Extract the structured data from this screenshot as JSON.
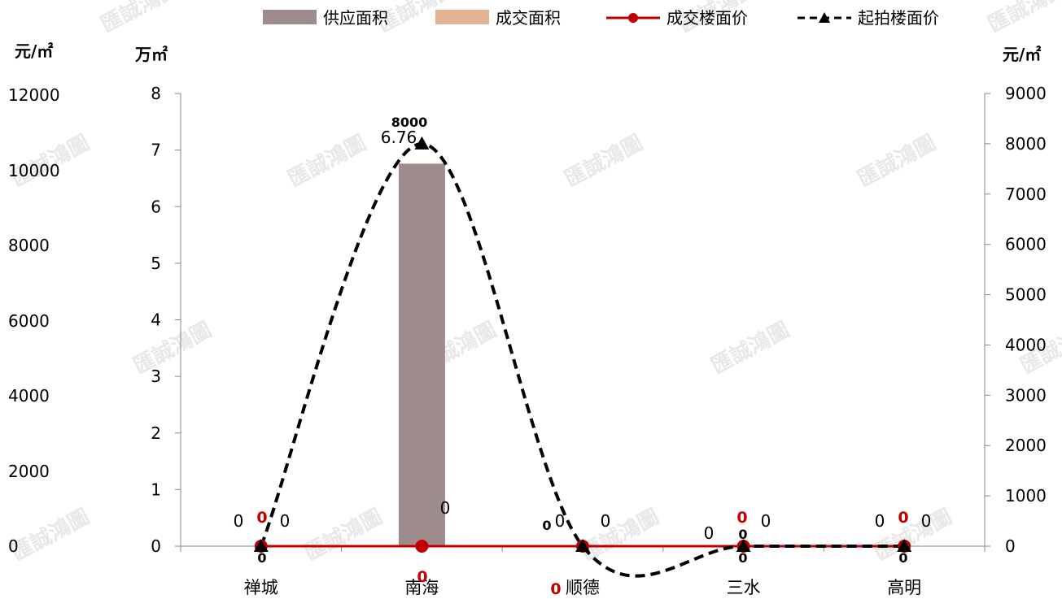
{
  "chart_data": {
    "type": "bar",
    "categories": [
      "禅城",
      "南海",
      "顺德",
      "三水",
      "高明"
    ],
    "series": [
      {
        "name": "供应面积",
        "kind": "bar",
        "axis": "primary",
        "color": "#9e8c8c",
        "values": [
          0,
          6.76,
          0,
          0,
          0
        ]
      },
      {
        "name": "成交面积",
        "kind": "bar",
        "axis": "primary",
        "color": "#e0b493",
        "values": [
          0,
          0,
          0,
          0,
          0
        ]
      },
      {
        "name": "成交楼面价",
        "kind": "line",
        "axis": "secondary",
        "color": "#c00000",
        "marker": "circle",
        "values": [
          0,
          0,
          0,
          0,
          0
        ]
      },
      {
        "name": "起拍楼面价",
        "kind": "line-dashed",
        "axis": "secondary",
        "color": "#000000",
        "marker": "triangle",
        "values": [
          0,
          8000,
          0,
          0,
          0
        ]
      }
    ],
    "axes": {
      "outer_left": {
        "unit": "元/㎡",
        "min": 0,
        "max": 12000,
        "ticks": [
          "0",
          "2000",
          "4000",
          "6000",
          "8000",
          "10000",
          "12000"
        ]
      },
      "left": {
        "unit": "万㎡",
        "min": 0,
        "max": 8,
        "ticks": [
          "0",
          "1",
          "2",
          "3",
          "4",
          "5",
          "6",
          "7",
          "8"
        ]
      },
      "right": {
        "unit": "元/㎡",
        "min": 0,
        "max": 9000,
        "ticks": [
          "0",
          "1000",
          "2000",
          "3000",
          "4000",
          "5000",
          "6000",
          "7000",
          "8000",
          "9000"
        ]
      }
    },
    "data_labels": {
      "supply": [
        "0",
        "6.76",
        "0",
        "0",
        "0"
      ],
      "deal_area": [
        "0",
        "0",
        "0",
        "0",
        "0"
      ],
      "deal_price": [
        "0",
        "0",
        "0",
        "0",
        "0"
      ],
      "start_price": [
        "0",
        "8000",
        "0",
        "0",
        "0"
      ],
      "extra": "0"
    },
    "legend_position": "top",
    "grid": false
  },
  "watermark_text": "匯誠鴻圖"
}
